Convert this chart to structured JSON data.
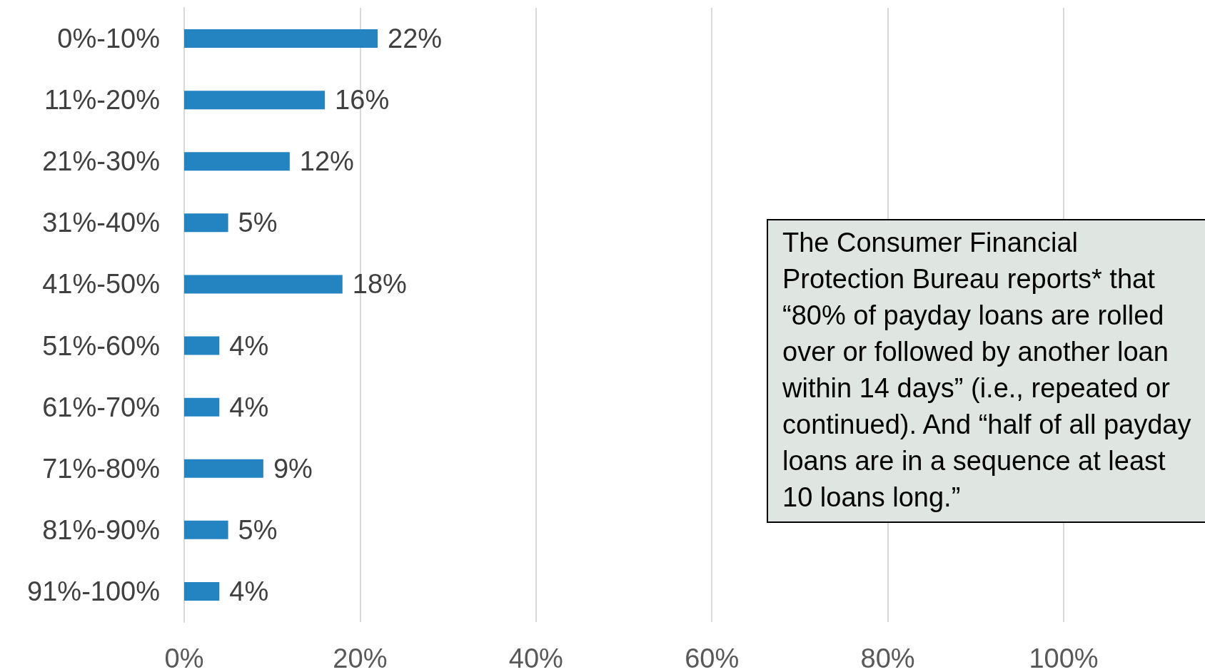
{
  "chart_data": {
    "type": "bar",
    "orientation": "horizontal",
    "categories": [
      "0%-10%",
      "11%-20%",
      "21%-30%",
      "31%-40%",
      "41%-50%",
      "51%-60%",
      "61%-70%",
      "71%-80%",
      "81%-90%",
      "91%-100%"
    ],
    "values": [
      22,
      16,
      12,
      5,
      18,
      4,
      4,
      9,
      5,
      4
    ],
    "value_labels": [
      "22%",
      "16%",
      "12%",
      "5%",
      "18%",
      "4%",
      "4%",
      "9%",
      "5%",
      "4%"
    ],
    "color": "#2484c1",
    "xlim": [
      0,
      100
    ],
    "xticks": [
      {
        "value": 0,
        "label": "0%"
      },
      {
        "value": 20,
        "label": "20%"
      },
      {
        "value": 40,
        "label": "40%"
      },
      {
        "value": 60,
        "label": "60%"
      },
      {
        "value": 80,
        "label": "80%"
      },
      {
        "value": 100,
        "label": "100%"
      }
    ],
    "grid": "x",
    "annotations": [
      "The Consumer Financial Protection Bureau reports* that “80% of payday loans are rolled over or followed by another loan within 14 days” (i.e., repeated or continued). And “half of all payday loans are in a sequence at least 10 loans long.”"
    ]
  }
}
